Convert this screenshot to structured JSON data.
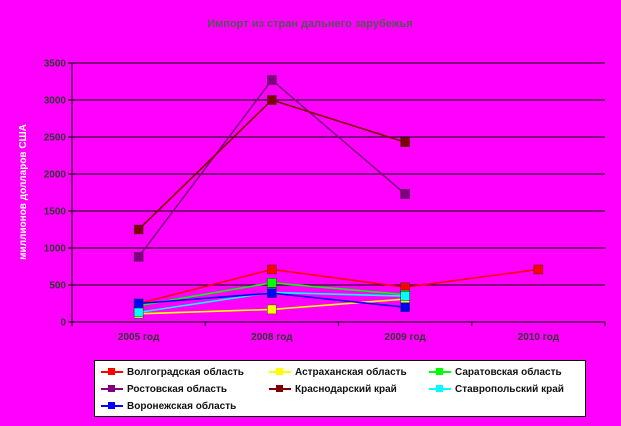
{
  "chart_data": {
    "type": "line",
    "title": "Импорт из стран дальнего зарубежья",
    "ylabel": "миллионов долларов США",
    "xlabel": "",
    "categories": [
      "2005 год",
      "2008 год",
      "2009 год",
      "2010 год"
    ],
    "ylim": [
      0,
      3500
    ],
    "yticks": [
      0,
      500,
      1000,
      1500,
      2000,
      2500,
      3000,
      3500
    ],
    "grid": "horizontal",
    "legend_position": "bottom",
    "series": [
      {
        "name": "Волгоградская область",
        "color": "#ff0000",
        "values": [
          250,
          710,
          470,
          710
        ]
      },
      {
        "name": "Астраханская область",
        "color": "#ffff00",
        "values": [
          110,
          170,
          310,
          null
        ]
      },
      {
        "name": "Саратовская область",
        "color": "#00ff00",
        "values": [
          220,
          530,
          370,
          null
        ]
      },
      {
        "name": "Ростовская область",
        "color": "#800080",
        "values": [
          880,
          3270,
          1730,
          null
        ]
      },
      {
        "name": "Краснодарский край",
        "color": "#800000",
        "values": [
          1250,
          3000,
          2430,
          null
        ]
      },
      {
        "name": "Ставропольский край",
        "color": "#00ffff",
        "values": [
          130,
          400,
          350,
          null
        ]
      },
      {
        "name": "Воронежская область",
        "color": "#0000ff",
        "values": [
          250,
          390,
          200,
          null
        ]
      }
    ]
  }
}
